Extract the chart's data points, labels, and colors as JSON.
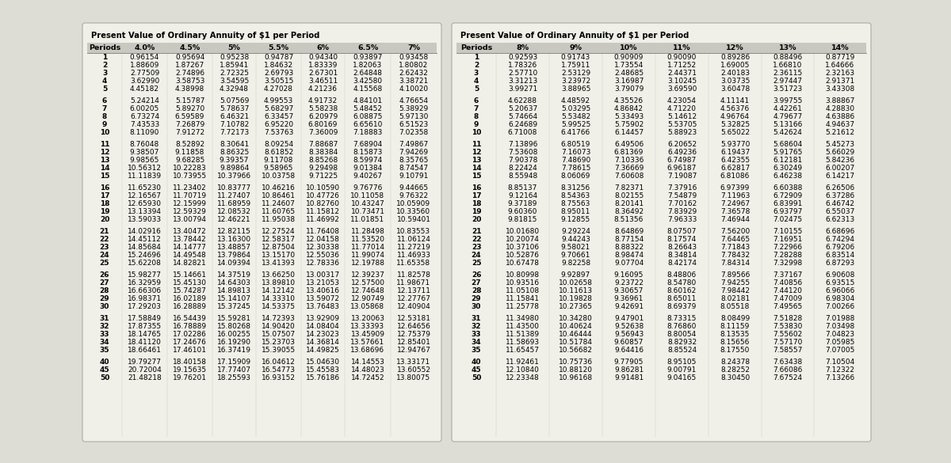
{
  "title1": "Present Value of Ordinary Annuity of $1 per Period",
  "title2": "Present Value of Ordinary Annuity of $1 per Period",
  "headers1": [
    "Periods",
    "4.0%",
    "4.5%",
    "5%",
    "5.5%",
    "6%",
    "6.5%",
    "7%"
  ],
  "headers2": [
    "Periods",
    "8%",
    "9%",
    "10%",
    "11%",
    "12%",
    "13%",
    "14%"
  ],
  "rows1": [
    [
      1,
      "0.96154",
      "0.95694",
      "0.95238",
      "0.94787",
      "0.94340",
      "0.93897",
      "0.93458"
    ],
    [
      2,
      "1.88609",
      "1.87267",
      "1.85941",
      "1.84632",
      "1.83339",
      "1.82063",
      "1.80802"
    ],
    [
      3,
      "2.77509",
      "2.74896",
      "2.72325",
      "2.69793",
      "2.67301",
      "2.64848",
      "2.62432"
    ],
    [
      4,
      "3.62990",
      "3.58753",
      "3.54595",
      "3.50515",
      "3.46511",
      "3.42580",
      "3.38721"
    ],
    [
      5,
      "4.45182",
      "4.38998",
      "4.32948",
      "4.27028",
      "4.21236",
      "4.15568",
      "4.10020"
    ],
    [
      6,
      "5.24214",
      "5.15787",
      "5.07569",
      "4.99553",
      "4.91732",
      "4.84101",
      "4.76654"
    ],
    [
      7,
      "6.00205",
      "5.89270",
      "5.78637",
      "5.68297",
      "5.58238",
      "5.48452",
      "5.38929"
    ],
    [
      8,
      "6.73274",
      "6.59589",
      "6.46321",
      "6.33457",
      "6.20979",
      "6.08875",
      "5.97130"
    ],
    [
      9,
      "7.43533",
      "7.26879",
      "7.10782",
      "6.95220",
      "6.80169",
      "6.65610",
      "6.51523"
    ],
    [
      10,
      "8.11090",
      "7.91272",
      "7.72173",
      "7.53763",
      "7.36009",
      "7.18883",
      "7.02358"
    ],
    [
      11,
      "8.76048",
      "8.52892",
      "8.30641",
      "8.09254",
      "7.88687",
      "7.68904",
      "7.49867"
    ],
    [
      12,
      "9.38507",
      "9.11858",
      "8.86325",
      "8.61852",
      "8.38384",
      "8.15873",
      "7.94269"
    ],
    [
      13,
      "9.98565",
      "9.68285",
      "9.39357",
      "9.11708",
      "8.85268",
      "8.59974",
      "8.35765"
    ],
    [
      14,
      "10.56312",
      "10.22283",
      "9.89864",
      "9.58965",
      "9.29498",
      "9.01384",
      "8.74547"
    ],
    [
      15,
      "11.11839",
      "10.73955",
      "10.37966",
      "10.03758",
      "9.71225",
      "9.40267",
      "9.10791"
    ],
    [
      16,
      "11.65230",
      "11.23402",
      "10.83777",
      "10.46216",
      "10.10590",
      "9.76776",
      "9.44665"
    ],
    [
      17,
      "12.16567",
      "11.70719",
      "11.27407",
      "10.86461",
      "10.47726",
      "10.11058",
      "9.76322"
    ],
    [
      18,
      "12.65930",
      "12.15999",
      "11.68959",
      "11.24607",
      "10.82760",
      "10.43247",
      "10.05909"
    ],
    [
      19,
      "13.13394",
      "12.59329",
      "12.08532",
      "11.60765",
      "11.15812",
      "10.73471",
      "10.33560"
    ],
    [
      20,
      "13.59033",
      "13.00794",
      "12.46221",
      "11.95038",
      "11.46992",
      "11.01851",
      "10.59401"
    ],
    [
      21,
      "14.02916",
      "13.40472",
      "12.82115",
      "12.27524",
      "11.76408",
      "11.28498",
      "10.83553"
    ],
    [
      22,
      "14.45112",
      "13.78442",
      "13.16300",
      "12.58317",
      "12.04158",
      "11.53520",
      "11.06124"
    ],
    [
      23,
      "14.85684",
      "14.14777",
      "13.48857",
      "12.87504",
      "12.30338",
      "11.77014",
      "11.27219"
    ],
    [
      24,
      "15.24696",
      "14.49548",
      "13.79864",
      "13.15170",
      "12.55036",
      "11.99074",
      "11.46933"
    ],
    [
      25,
      "15.62208",
      "14.82821",
      "14.09394",
      "13.41393",
      "12.78336",
      "12.19788",
      "11.65358"
    ],
    [
      26,
      "15.98277",
      "15.14661",
      "14.37519",
      "13.66250",
      "13.00317",
      "12.39237",
      "11.82578"
    ],
    [
      27,
      "16.32959",
      "15.45130",
      "14.64303",
      "13.89810",
      "13.21053",
      "12.57500",
      "11.98671"
    ],
    [
      28,
      "16.66306",
      "15.74287",
      "14.89813",
      "14.12142",
      "13.40616",
      "12.74648",
      "12.13711"
    ],
    [
      29,
      "16.98371",
      "16.02189",
      "15.14107",
      "14.33310",
      "13.59072",
      "12.90749",
      "12.27767"
    ],
    [
      30,
      "17.29203",
      "16.28889",
      "15.37245",
      "14.53375",
      "13.76483",
      "13.05868",
      "12.40904"
    ],
    [
      31,
      "17.58849",
      "16.54439",
      "15.59281",
      "14.72393",
      "13.92909",
      "13.20063",
      "12.53181"
    ],
    [
      32,
      "17.87355",
      "16.78889",
      "15.80268",
      "14.90420",
      "14.08404",
      "13.33393",
      "12.64656"
    ],
    [
      33,
      "18.14765",
      "17.02286",
      "16.00255",
      "15.07507",
      "14.23023",
      "13.45909",
      "12.75379"
    ],
    [
      34,
      "18.41120",
      "17.24676",
      "16.19290",
      "15.23703",
      "14.36814",
      "13.57661",
      "12.85401"
    ],
    [
      35,
      "18.66461",
      "17.46101",
      "16.37419",
      "15.39055",
      "14.49825",
      "13.68696",
      "12.94767"
    ],
    [
      40,
      "19.79277",
      "18.40158",
      "17.15909",
      "16.04612",
      "15.04630",
      "14.14553",
      "13.33171"
    ],
    [
      45,
      "20.72004",
      "19.15635",
      "17.77407",
      "16.54773",
      "15.45583",
      "14.48023",
      "13.60552"
    ],
    [
      50,
      "21.48218",
      "19.76201",
      "18.25593",
      "16.93152",
      "15.76186",
      "14.72452",
      "13.80075"
    ]
  ],
  "rows2": [
    [
      1,
      "0.92593",
      "0.91743",
      "0.90909",
      "0.90090",
      "0.89286",
      "0.88496",
      "0.87719"
    ],
    [
      2,
      "1.78326",
      "1.75911",
      "1.73554",
      "1.71252",
      "1.69005",
      "1.66810",
      "1.64666"
    ],
    [
      3,
      "2.57710",
      "2.53129",
      "2.48685",
      "2.44371",
      "2.40183",
      "2.36115",
      "2.32163"
    ],
    [
      4,
      "3.31213",
      "3.23972",
      "3.16987",
      "3.10245",
      "3.03735",
      "2.97447",
      "2.91371"
    ],
    [
      5,
      "3.99271",
      "3.88965",
      "3.79079",
      "3.69590",
      "3.60478",
      "3.51723",
      "3.43308"
    ],
    [
      6,
      "4.62288",
      "4.48592",
      "4.35526",
      "4.23054",
      "4.11141",
      "3.99755",
      "3.88867"
    ],
    [
      7,
      "5.20637",
      "5.03295",
      "4.86842",
      "4.71220",
      "4.56376",
      "4.42261",
      "4.28830"
    ],
    [
      8,
      "5.74664",
      "5.53482",
      "5.33493",
      "5.14612",
      "4.96764",
      "4.79677",
      "4.63886"
    ],
    [
      9,
      "6.24689",
      "5.99525",
      "5.75902",
      "5.53705",
      "5.32825",
      "5.13166",
      "4.94637"
    ],
    [
      10,
      "6.71008",
      "6.41766",
      "6.14457",
      "5.88923",
      "5.65022",
      "5.42624",
      "5.21612"
    ],
    [
      11,
      "7.13896",
      "6.80519",
      "6.49506",
      "6.20652",
      "5.93770",
      "5.68604",
      "5.45273"
    ],
    [
      12,
      "7.53608",
      "7.16073",
      "6.81369",
      "6.49236",
      "6.19437",
      "5.91765",
      "5.66029"
    ],
    [
      13,
      "7.90378",
      "7.48690",
      "7.10336",
      "6.74987",
      "6.42355",
      "6.12181",
      "5.84236"
    ],
    [
      14,
      "8.22424",
      "7.78615",
      "7.36669",
      "6.96187",
      "6.62817",
      "6.30249",
      "6.00207"
    ],
    [
      15,
      "8.55948",
      "8.06069",
      "7.60608",
      "7.19087",
      "6.81086",
      "6.46238",
      "6.14217"
    ],
    [
      16,
      "8.85137",
      "8.31256",
      "7.82371",
      "7.37916",
      "6.97399",
      "6.60388",
      "6.26506"
    ],
    [
      17,
      "9.12164",
      "8.54363",
      "8.02155",
      "7.54879",
      "7.11963",
      "6.72909",
      "6.37286"
    ],
    [
      18,
      "9.37189",
      "8.75563",
      "8.20141",
      "7.70162",
      "7.24967",
      "6.83991",
      "6.46742"
    ],
    [
      19,
      "9.60360",
      "8.95011",
      "8.36492",
      "7.83929",
      "7.36578",
      "6.93797",
      "6.55037"
    ],
    [
      20,
      "9.81815",
      "9.12855",
      "8.51356",
      "7.96333",
      "7.46944",
      "7.02475",
      "6.62313"
    ],
    [
      21,
      "10.01680",
      "9.29224",
      "8.64869",
      "8.07507",
      "7.56200",
      "7.10155",
      "6.68696"
    ],
    [
      22,
      "10.20074",
      "9.44243",
      "8.77154",
      "8.17574",
      "7.64465",
      "7.16951",
      "6.74294"
    ],
    [
      23,
      "10.37106",
      "9.58021",
      "8.88322",
      "8.26643",
      "7.71843",
      "7.22966",
      "6.79206"
    ],
    [
      24,
      "10.52876",
      "9.70661",
      "8.98474",
      "8.34814",
      "7.78432",
      "7.28288",
      "6.83514"
    ],
    [
      25,
      "10.67478",
      "9.82258",
      "9.07704",
      "8.42174",
      "7.84314",
      "7.32998",
      "6.87293"
    ],
    [
      26,
      "10.80998",
      "9.92897",
      "9.16095",
      "8.48806",
      "7.89566",
      "7.37167",
      "6.90608"
    ],
    [
      27,
      "10.93516",
      "10.02658",
      "9.23722",
      "8.54780",
      "7.94255",
      "7.40856",
      "6.93515"
    ],
    [
      28,
      "11.05108",
      "10.11613",
      "9.30657",
      "8.60162",
      "7.98442",
      "7.44120",
      "6.96066"
    ],
    [
      29,
      "11.15841",
      "10.19828",
      "9.36961",
      "8.65011",
      "8.02181",
      "7.47009",
      "6.98304"
    ],
    [
      30,
      "11.25778",
      "10.27365",
      "9.42691",
      "8.69379",
      "8.05518",
      "7.49565",
      "7.00266"
    ],
    [
      31,
      "11.34980",
      "10.34280",
      "9.47901",
      "8.73315",
      "8.08499",
      "7.51828",
      "7.01988"
    ],
    [
      32,
      "11.43500",
      "10.40624",
      "9.52638",
      "8.76860",
      "8.11159",
      "7.53830",
      "7.03498"
    ],
    [
      33,
      "11.51389",
      "10.46444",
      "9.56943",
      "8.80054",
      "8.13535",
      "7.55602",
      "7.04823"
    ],
    [
      34,
      "11.58693",
      "10.51784",
      "9.60857",
      "8.82932",
      "8.15656",
      "7.57170",
      "7.05985"
    ],
    [
      35,
      "11.65457",
      "10.56682",
      "9.64416",
      "8.85524",
      "8.17550",
      "7.58557",
      "7.07005"
    ],
    [
      40,
      "11.92461",
      "10.75736",
      "9.77905",
      "8.95105",
      "8.24378",
      "7.63438",
      "7.10504"
    ],
    [
      45,
      "12.10840",
      "10.88120",
      "9.86281",
      "9.00791",
      "8.28252",
      "7.66086",
      "7.12322"
    ],
    [
      50,
      "12.23348",
      "10.96168",
      "9.91481",
      "9.04165",
      "8.30450",
      "7.67524",
      "7.13266"
    ]
  ],
  "bg_color": "#ddddd5",
  "table_bg": "#f0f0e8",
  "header_bg": "#c8c8c0",
  "separator_after": [
    5,
    10,
    15,
    20,
    25,
    30,
    35
  ]
}
